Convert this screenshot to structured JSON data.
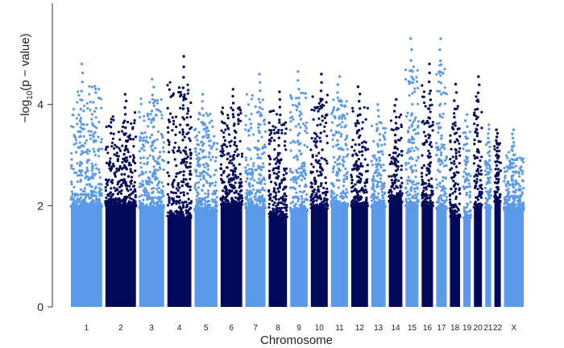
{
  "chart_data": {
    "type": "scatter",
    "subtype": "manhattan",
    "title": "",
    "xlabel": "Chromosome",
    "ylabel_prefix": "−log",
    "ylabel_subscript": "10",
    "ylabel_suffix": "(p − value)",
    "ylim": [
      0,
      6
    ],
    "yticks": [
      0,
      2,
      4
    ],
    "grid": false,
    "legend": "none",
    "colors": {
      "light": "#5b9ae8",
      "dark": "#02095a"
    },
    "chromosomes": [
      {
        "label": "1",
        "length": 248,
        "color": "light",
        "peak": 4.8
      },
      {
        "label": "2",
        "length": 242,
        "color": "dark",
        "peak": 4.2
      },
      {
        "label": "3",
        "length": 198,
        "color": "light",
        "peak": 4.5
      },
      {
        "label": "4",
        "length": 190,
        "color": "dark",
        "peak": 4.95
      },
      {
        "label": "5",
        "length": 181,
        "color": "light",
        "peak": 4.2
      },
      {
        "label": "6",
        "length": 171,
        "color": "dark",
        "peak": 4.3
      },
      {
        "label": "7",
        "length": 159,
        "color": "light",
        "peak": 4.6
      },
      {
        "label": "8",
        "length": 145,
        "color": "dark",
        "peak": 4.25
      },
      {
        "label": "9",
        "length": 138,
        "color": "light",
        "peak": 4.65
      },
      {
        "label": "10",
        "length": 134,
        "color": "dark",
        "peak": 4.6
      },
      {
        "label": "11",
        "length": 135,
        "color": "light",
        "peak": 4.55
      },
      {
        "label": "12",
        "length": 133,
        "color": "dark",
        "peak": 4.35
      },
      {
        "label": "13",
        "length": 114,
        "color": "light",
        "peak": 4.0
      },
      {
        "label": "14",
        "length": 107,
        "color": "dark",
        "peak": 4.1
      },
      {
        "label": "15",
        "length": 102,
        "color": "light",
        "peak": 5.3
      },
      {
        "label": "16",
        "length": 90,
        "color": "dark",
        "peak": 4.8
      },
      {
        "label": "17",
        "length": 83,
        "color": "light",
        "peak": 5.3
      },
      {
        "label": "18",
        "length": 80,
        "color": "dark",
        "peak": 4.4
      },
      {
        "label": "19",
        "length": 59,
        "color": "light",
        "peak": 3.8
      },
      {
        "label": "20",
        "length": 64,
        "color": "dark",
        "peak": 4.55
      },
      {
        "label": "21",
        "length": 47,
        "color": "light",
        "peak": 3.6
      },
      {
        "label": "22",
        "length": 51,
        "color": "dark",
        "peak": 3.5
      },
      {
        "label": "X",
        "length": 156,
        "color": "light",
        "peak": 3.5
      }
    ]
  }
}
